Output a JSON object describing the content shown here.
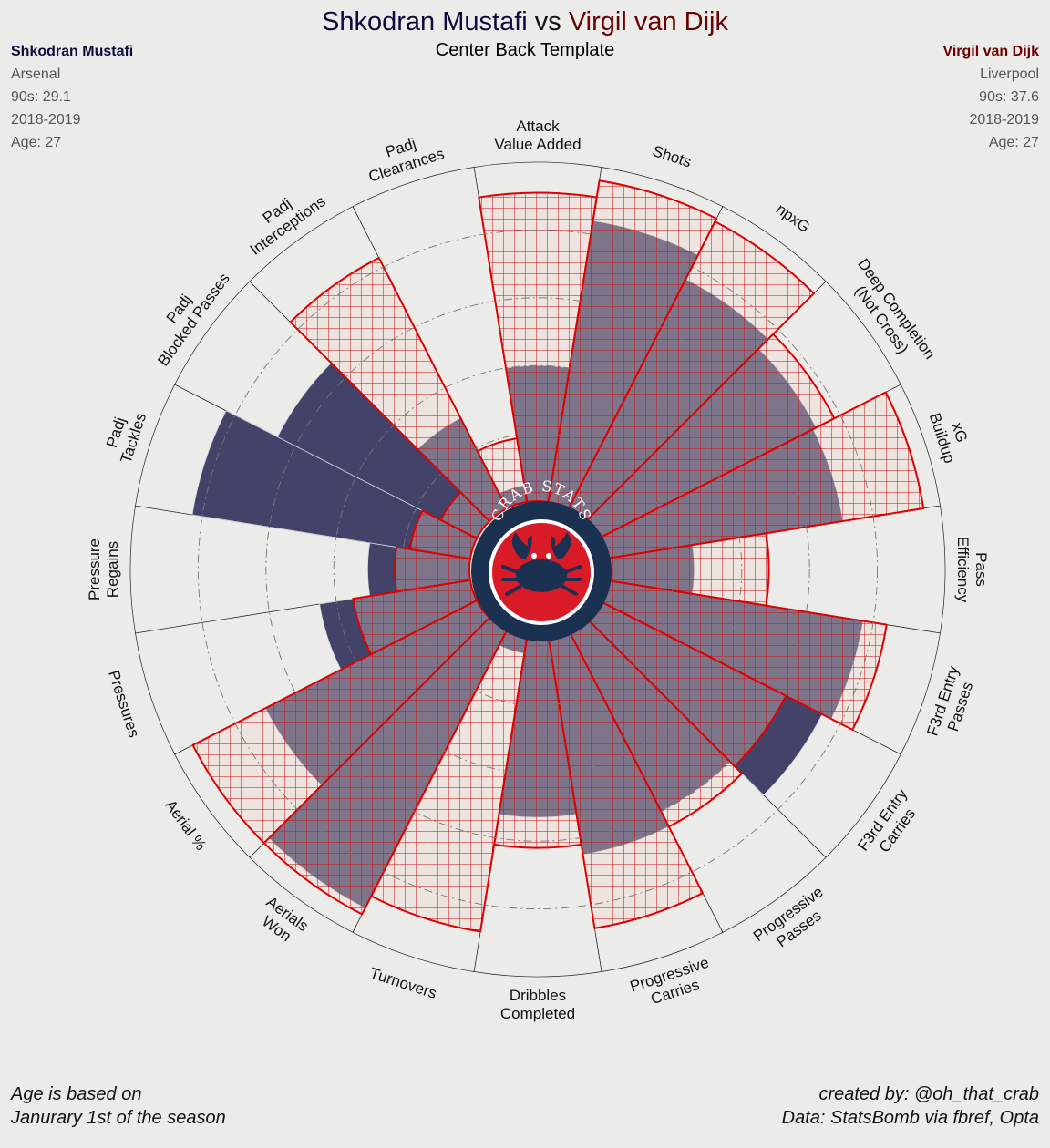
{
  "header": {
    "player1": "Shkodran Mustafi",
    "vs": "vs",
    "player2": "Virgil van Dijk",
    "subtitle": "Center Back Template"
  },
  "player1_info": {
    "name": "Shkodran Mustafi",
    "club": "Arsenal",
    "nineties": "90s: 29.1",
    "season": "2018-2019",
    "age": "Age: 27"
  },
  "player2_info": {
    "name": "Virgil van Dijk",
    "club": "Liverpool",
    "nineties": "90s: 37.6",
    "season": "2018-2019",
    "age": "Age: 27"
  },
  "logo": {
    "text": "CRAB STATS"
  },
  "footer": {
    "left_line1": "Age is based on",
    "left_line2": "Janurary 1st of the season",
    "right_line1": "created by: @oh_that_crab",
    "right_line2": "Data: StatsBomb via fbref, Opta"
  },
  "colors": {
    "background": "#ebebe9",
    "player1": "#0d0b3d",
    "player2": "#6b0000",
    "player1_fill": "#434268",
    "player2_line": "#e00000",
    "player2_fill": "#f2d3ce"
  },
  "chart_data": {
    "type": "polar-bar",
    "scale": "percentile",
    "rlim": [
      0,
      100
    ],
    "grid": true,
    "categories": [
      [
        "Attack",
        "Value Added"
      ],
      [
        "Shots"
      ],
      [
        "npxG"
      ],
      [
        "Deep Completion",
        "(Not Cross)"
      ],
      [
        "xG",
        "Buildup"
      ],
      [
        "Pass",
        "Efficiency"
      ],
      [
        "F3rd Entry",
        "Passes"
      ],
      [
        "F3rd Entry",
        "Carries"
      ],
      [
        "Progressive",
        "Passes"
      ],
      [
        "Progressive",
        "Carries"
      ],
      [
        "Dribbles",
        "Completed"
      ],
      [
        "Turnovers"
      ],
      [
        "Aerials",
        "Won"
      ],
      [
        "Aerial %"
      ],
      [
        "Pressures"
      ],
      [
        "Pressure",
        "Regains"
      ],
      [
        "Padj",
        "Tackles"
      ],
      [
        "Padj",
        "Blocked Passes"
      ],
      [
        "Padj",
        "Interceptions"
      ],
      [
        "Padj",
        "Clearances"
      ]
    ],
    "series": [
      {
        "name": "Shkodran Mustafi",
        "values": [
          40,
          84,
          76,
          72,
          71,
          26,
          77,
          74,
          60,
          65,
          53,
          5,
          92,
          70,
          45,
          30,
          83,
          66,
          30,
          5
        ]
      },
      {
        "name": "Virgil van Dijk",
        "values": [
          91,
          96,
          95,
          78,
          95,
          48,
          84,
          62,
          65,
          87,
          62,
          88,
          94,
          94,
          35,
          22,
          18,
          12,
          83,
          19
        ]
      }
    ]
  }
}
